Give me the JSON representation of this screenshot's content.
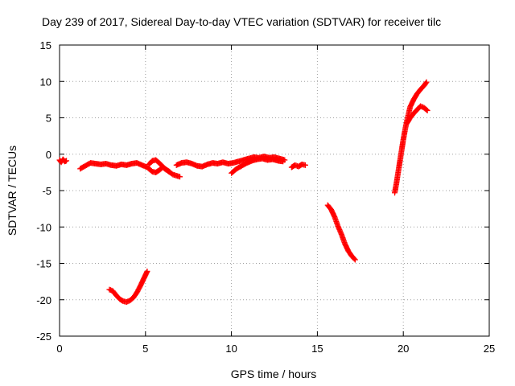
{
  "chart_data": {
    "type": "scatter",
    "title": "Day 239 of 2017, Sidereal Day-to-day VTEC variation (SDTVAR) for receiver tilc",
    "xlabel": "GPS time / hours",
    "ylabel": "SDTVAR / TECUs",
    "xlim": [
      0,
      25
    ],
    "ylim": [
      -25,
      15
    ],
    "xticks": [
      "0",
      "5",
      "10",
      "15",
      "20",
      "25"
    ],
    "yticks": [
      "-25",
      "-20",
      "-15",
      "-10",
      "-5",
      "0",
      "5",
      "10",
      "15"
    ],
    "grid": true,
    "marker": "+",
    "color": "#ff0000",
    "series": [
      {
        "x": [
          0.0,
          0.1,
          0.2,
          0.3,
          0.4
        ],
        "y": [
          -0.8,
          -1.1,
          -0.7,
          -1.0,
          -0.9
        ]
      },
      {
        "x": [
          1.2,
          1.5,
          1.8,
          2.1,
          2.4,
          2.7,
          3.0,
          3.3,
          3.6,
          3.9,
          4.2,
          4.5,
          4.8,
          5.1,
          5.4,
          5.6,
          5.8,
          6.0,
          6.3,
          6.6,
          7.0
        ],
        "y": [
          -2.0,
          -1.6,
          -1.2,
          -1.3,
          -1.4,
          -1.3,
          -1.5,
          -1.6,
          -1.4,
          -1.5,
          -1.3,
          -1.2,
          -1.5,
          -1.8,
          -2.4,
          -2.5,
          -2.2,
          -1.8,
          -2.3,
          -2.8,
          -3.1
        ]
      },
      {
        "x": [
          5.2,
          5.4,
          5.6,
          5.8,
          6.0,
          6.2,
          6.4
        ],
        "y": [
          -1.4,
          -0.9,
          -0.8,
          -1.2,
          -1.7,
          -2.1,
          -2.4
        ]
      },
      {
        "x": [
          6.8,
          7.1,
          7.4,
          7.7,
          8.0,
          8.3,
          8.6,
          8.9,
          9.2,
          9.5,
          9.8,
          10.1,
          10.4,
          10.7,
          11.0,
          11.3,
          11.6,
          11.9,
          12.2,
          12.5,
          12.8,
          13.1
        ],
        "y": [
          -1.5,
          -1.2,
          -1.1,
          -1.3,
          -1.6,
          -1.7,
          -1.4,
          -1.2,
          -1.3,
          -1.1,
          -1.3,
          -1.2,
          -1.0,
          -0.8,
          -0.6,
          -0.4,
          -0.5,
          -0.3,
          -0.5,
          -0.4,
          -0.6,
          -0.8
        ]
      },
      {
        "x": [
          10.0,
          10.3,
          10.6,
          10.9,
          11.2,
          11.5,
          11.8,
          12.1,
          12.4,
          12.7,
          13.0
        ],
        "y": [
          -2.6,
          -2.0,
          -1.6,
          -1.2,
          -0.9,
          -0.7,
          -0.6,
          -0.8,
          -0.7,
          -0.9,
          -1.0
        ]
      },
      {
        "x": [
          13.5,
          13.7,
          13.9,
          14.1,
          14.3
        ],
        "y": [
          -1.8,
          -1.5,
          -1.7,
          -1.4,
          -1.5
        ]
      },
      {
        "x": [
          2.9,
          3.1,
          3.3,
          3.5,
          3.7,
          3.9,
          4.1,
          4.3,
          4.5,
          4.7,
          4.9,
          5.0,
          5.1
        ],
        "y": [
          -18.6,
          -18.8,
          -19.4,
          -19.9,
          -20.2,
          -20.3,
          -20.1,
          -19.7,
          -19.0,
          -18.1,
          -17.1,
          -16.6,
          -16.1
        ]
      },
      {
        "x": [
          15.6,
          15.8,
          16.0,
          16.2,
          16.4,
          16.6,
          16.8,
          17.0,
          17.2
        ],
        "y": [
          -7.0,
          -7.6,
          -8.6,
          -9.9,
          -11.0,
          -12.3,
          -13.3,
          -14.0,
          -14.5
        ]
      },
      {
        "x": [
          19.5,
          19.6,
          19.7,
          19.8,
          19.9,
          20.0,
          20.1,
          20.2,
          20.3,
          20.4,
          20.6,
          20.8,
          21.0,
          21.2,
          21.35
        ],
        "y": [
          -5.3,
          -4.0,
          -2.5,
          -1.0,
          0.5,
          2.0,
          3.3,
          4.5,
          5.5,
          6.5,
          7.5,
          8.3,
          8.9,
          9.4,
          9.9
        ]
      },
      {
        "x": [
          20.2,
          20.4,
          20.6,
          20.8,
          21.0,
          21.2,
          21.4
        ],
        "y": [
          4.2,
          5.0,
          5.6,
          6.1,
          6.6,
          6.4,
          6.0
        ]
      }
    ]
  }
}
